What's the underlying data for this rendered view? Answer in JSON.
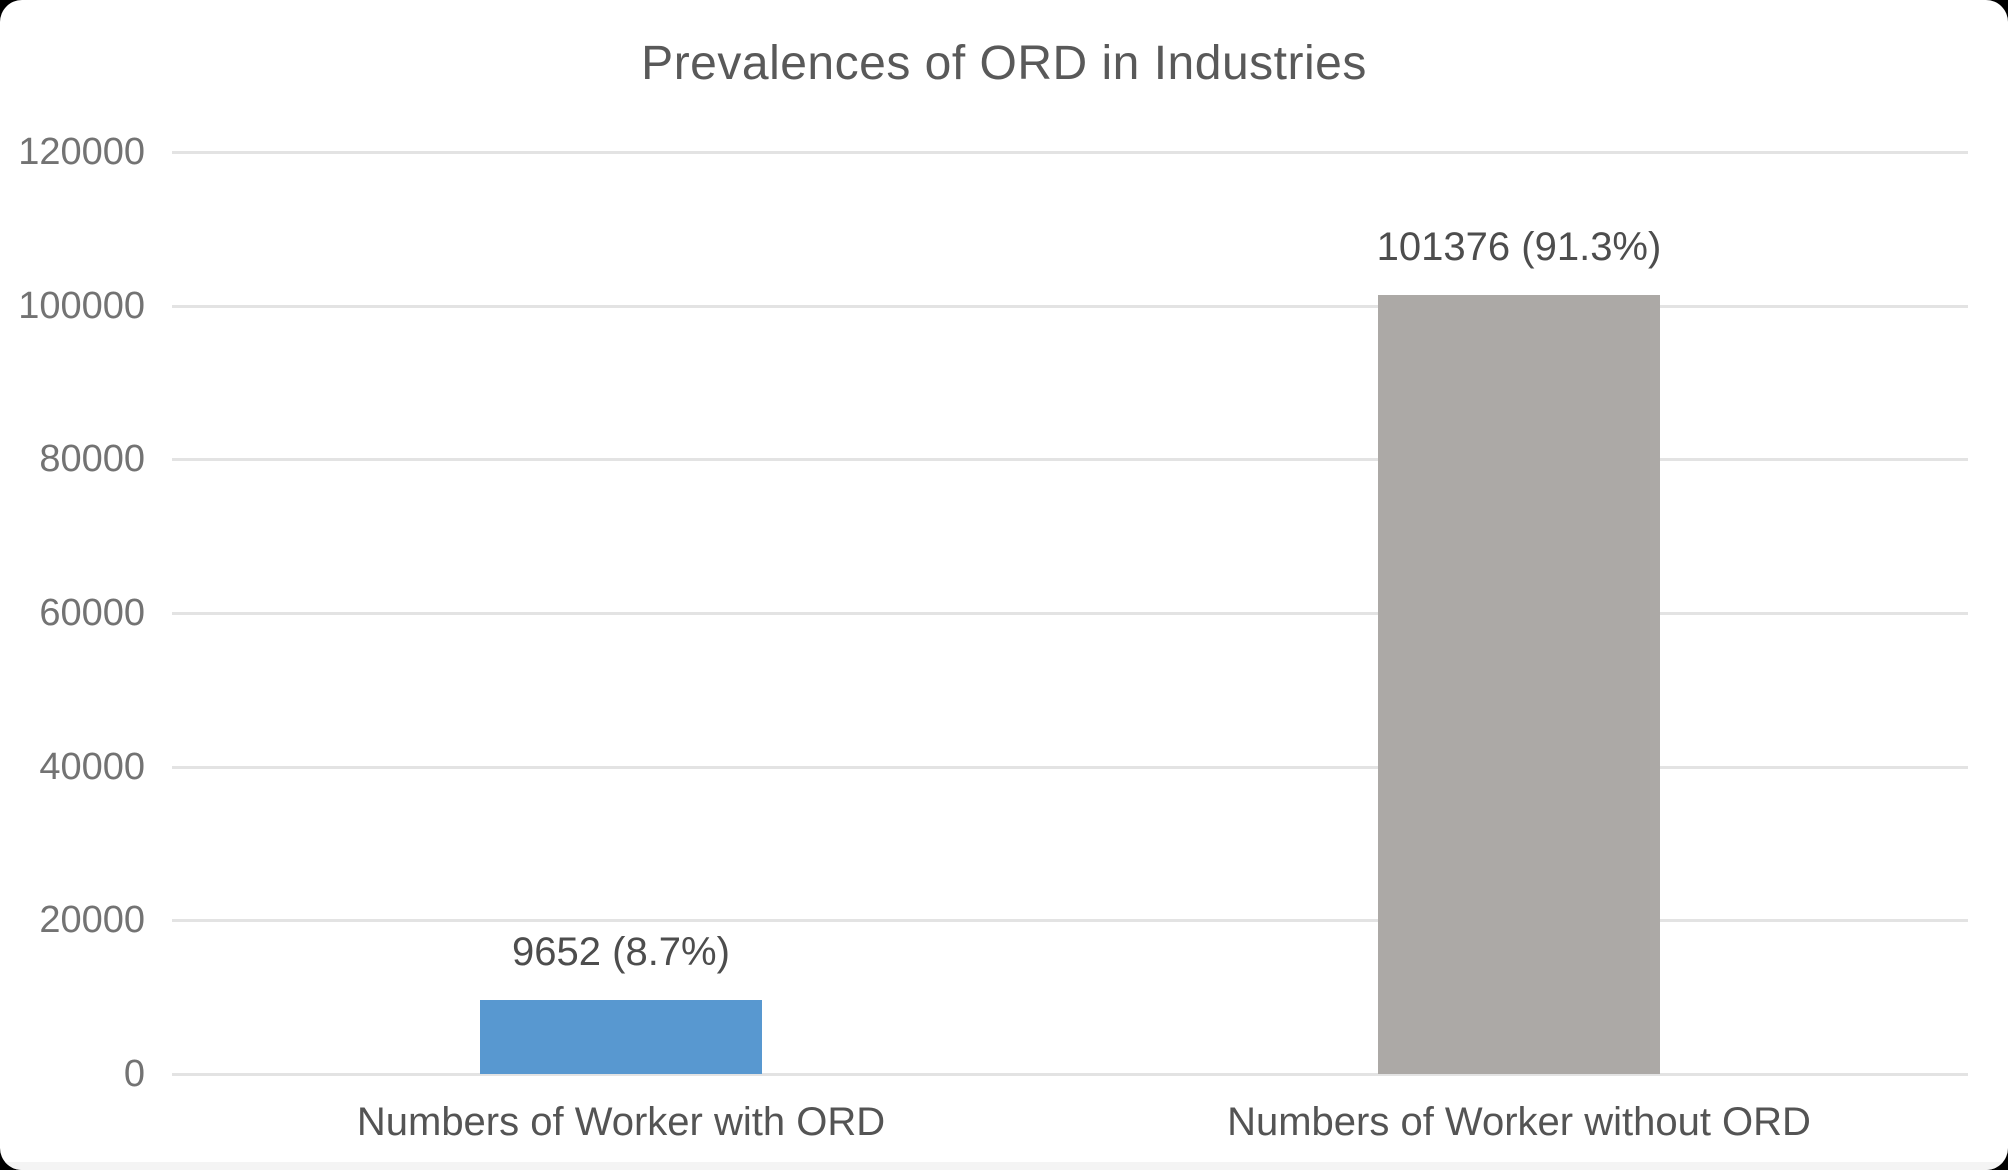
{
  "chart_data": {
    "type": "bar",
    "title": "Prevalences of ORD in Industries",
    "categories": [
      "Numbers of Worker with ORD",
      "Numbers of Worker without ORD"
    ],
    "values": [
      9652,
      101376
    ],
    "bar_labels": [
      "9652 (8.7%)",
      "101376 (91.3%)"
    ],
    "bar_colors": [
      "#5898D0",
      "#ACA9A6"
    ],
    "y_ticks": [
      0,
      20000,
      40000,
      60000,
      80000,
      100000,
      120000
    ],
    "y_tick_labels": [
      "0",
      "20000",
      "40000",
      "60000",
      "80000",
      "100000",
      "120000"
    ],
    "ylim": [
      0,
      120000
    ],
    "xlabel": "",
    "ylabel": "",
    "grid": "horizontal",
    "legend_position": "none"
  },
  "colors": {
    "title_text": "#595959",
    "tick_text": "#737373",
    "value_text": "#4D4D4D",
    "category_text": "#545454",
    "gridline": "#E3E3E3",
    "background": "#FFFFFF",
    "accent_blue": "#5898D0",
    "accent_gray": "#ACA9A6"
  }
}
